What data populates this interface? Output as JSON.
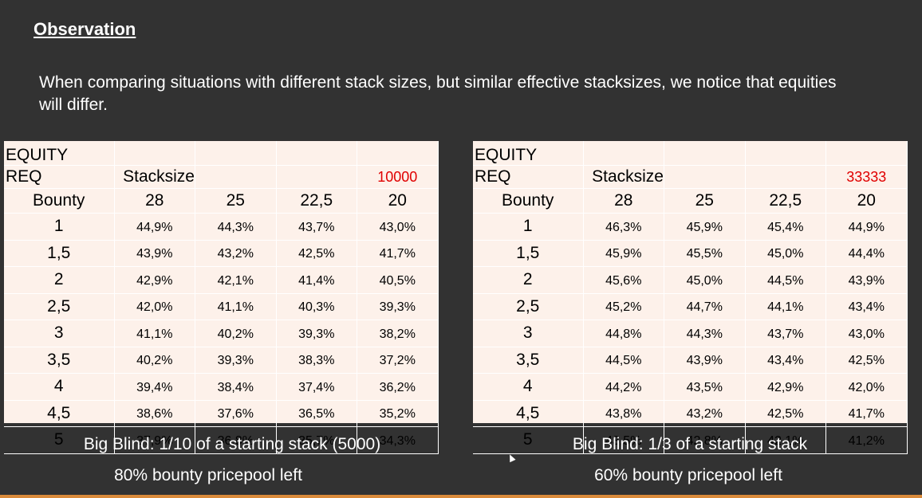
{
  "title": "Observation",
  "intro": "When comparing situations with different stack sizes, but similar effective stacksizes, we notice that equities will differ.",
  "tables": [
    {
      "header_line1": "EQUITY",
      "header_line2": "REQ",
      "stacksize_label": "Stacksize",
      "red_value": "10000",
      "bounty_label": "Bounty",
      "columns": [
        "28",
        "25",
        "22,5",
        "20"
      ],
      "rows": [
        {
          "bounty": "1",
          "values": [
            "44,9%",
            "44,3%",
            "43,7%",
            "43,0%"
          ]
        },
        {
          "bounty": "1,5",
          "values": [
            "43,9%",
            "43,2%",
            "42,5%",
            "41,7%"
          ]
        },
        {
          "bounty": "2",
          "values": [
            "42,9%",
            "42,1%",
            "41,4%",
            "40,5%"
          ]
        },
        {
          "bounty": "2,5",
          "values": [
            "42,0%",
            "41,1%",
            "40,3%",
            "39,3%"
          ]
        },
        {
          "bounty": "3",
          "values": [
            "41,1%",
            "40,2%",
            "39,3%",
            "38,2%"
          ]
        },
        {
          "bounty": "3,5",
          "values": [
            "40,2%",
            "39,3%",
            "38,3%",
            "37,2%"
          ]
        },
        {
          "bounty": "4",
          "values": [
            "39,4%",
            "38,4%",
            "37,4%",
            "36,2%"
          ]
        },
        {
          "bounty": "4,5",
          "values": [
            "38,6%",
            "37,6%",
            "36,5%",
            "35,2%"
          ]
        },
        {
          "bounty": "5",
          "values": [
            "37,9%",
            "36,8%",
            "35,7%",
            "34,3%"
          ]
        }
      ],
      "caption1": "Big Blind: 1/10 of a starting stack (5000)",
      "caption2": "80% bounty pricepool left"
    },
    {
      "header_line1": "EQUITY",
      "header_line2": "REQ",
      "stacksize_label": "Stacksize",
      "red_value": "33333",
      "bounty_label": "Bounty",
      "columns": [
        "28",
        "25",
        "22,5",
        "20"
      ],
      "rows": [
        {
          "bounty": "1",
          "values": [
            "46,3%",
            "45,9%",
            "45,4%",
            "44,9%"
          ]
        },
        {
          "bounty": "1,5",
          "values": [
            "45,9%",
            "45,5%",
            "45,0%",
            "44,4%"
          ]
        },
        {
          "bounty": "2",
          "values": [
            "45,6%",
            "45,0%",
            "44,5%",
            "43,9%"
          ]
        },
        {
          "bounty": "2,5",
          "values": [
            "45,2%",
            "44,7%",
            "44,1%",
            "43,4%"
          ]
        },
        {
          "bounty": "3",
          "values": [
            "44,8%",
            "44,3%",
            "43,7%",
            "43,0%"
          ]
        },
        {
          "bounty": "3,5",
          "values": [
            "44,5%",
            "43,9%",
            "43,4%",
            "42,5%"
          ]
        },
        {
          "bounty": "4",
          "values": [
            "44,2%",
            "43,5%",
            "42,9%",
            "42,0%"
          ]
        },
        {
          "bounty": "4,5",
          "values": [
            "43,8%",
            "43,2%",
            "42,5%",
            "41,7%"
          ]
        },
        {
          "bounty": "5",
          "values": [
            "43,5%",
            "42,8%",
            "42,1%",
            "41,2%"
          ]
        }
      ],
      "caption1": "Big Blind: 1/3 of a starting stack",
      "caption2": "60% bounty pricepool left"
    }
  ],
  "colors": {
    "background": "#323232",
    "table_background": "#fdf1ea",
    "highlight_red": "#e00000",
    "bottom_accent": "#d98a3a"
  }
}
